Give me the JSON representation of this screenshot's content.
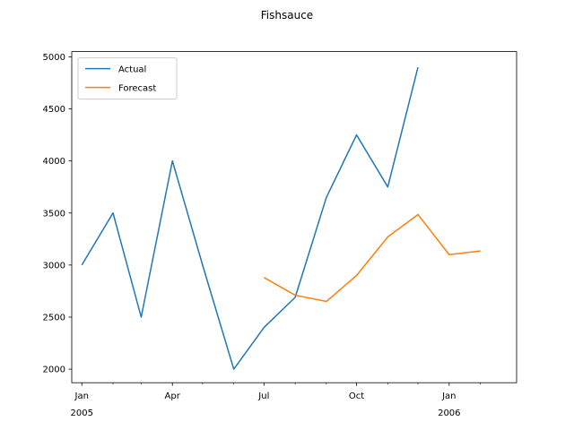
{
  "chart_data": {
    "type": "line",
    "title": "Fishsauce",
    "xlabel": "",
    "ylabel": "",
    "x": [
      "2005-01",
      "2005-02",
      "2005-03",
      "2005-04",
      "2005-05",
      "2005-06",
      "2005-07",
      "2005-08",
      "2005-09",
      "2005-10",
      "2005-11",
      "2005-12",
      "2006-01",
      "2006-02"
    ],
    "x_tick_labels": [
      {
        "x": "2005-01",
        "line1": "Jan",
        "line2": "2005"
      },
      {
        "x": "2005-04",
        "line1": "Apr",
        "line2": ""
      },
      {
        "x": "2005-07",
        "line1": "Jul",
        "line2": ""
      },
      {
        "x": "2005-10",
        "line1": "Oct",
        "line2": ""
      },
      {
        "x": "2006-01",
        "line1": "Jan",
        "line2": "2006"
      }
    ],
    "y_ticks": [
      2000,
      2500,
      3000,
      3500,
      4000,
      4500,
      5000
    ],
    "ylim": [
      1870,
      5050
    ],
    "xlim": [
      "2004-12-22",
      "2006-03-09"
    ],
    "series": [
      {
        "name": "Actual",
        "color": "#1f77b4",
        "points": [
          {
            "x": "2005-01",
            "y": 3000
          },
          {
            "x": "2005-02",
            "y": 3500
          },
          {
            "x": "2005-03",
            "y": 2500
          },
          {
            "x": "2005-04",
            "y": 4000
          },
          {
            "x": "2005-05",
            "y": 3000
          },
          {
            "x": "2005-06",
            "y": 2000
          },
          {
            "x": "2005-07",
            "y": 2400
          },
          {
            "x": "2005-08",
            "y": 2690
          },
          {
            "x": "2005-09",
            "y": 3650
          },
          {
            "x": "2005-10",
            "y": 4250
          },
          {
            "x": "2005-11",
            "y": 3750
          },
          {
            "x": "2005-12",
            "y": 4900
          }
        ]
      },
      {
        "name": "Forecast",
        "color": "#ff7f0e",
        "points": [
          {
            "x": "2005-07",
            "y": 2880
          },
          {
            "x": "2005-08",
            "y": 2710
          },
          {
            "x": "2005-09",
            "y": 2650
          },
          {
            "x": "2005-10",
            "y": 2900
          },
          {
            "x": "2005-11",
            "y": 3270
          },
          {
            "x": "2005-12",
            "y": 3485
          },
          {
            "x": "2006-01",
            "y": 3100
          },
          {
            "x": "2006-02",
            "y": 3135
          }
        ]
      }
    ],
    "legend_position": "top-left",
    "grid": false
  }
}
